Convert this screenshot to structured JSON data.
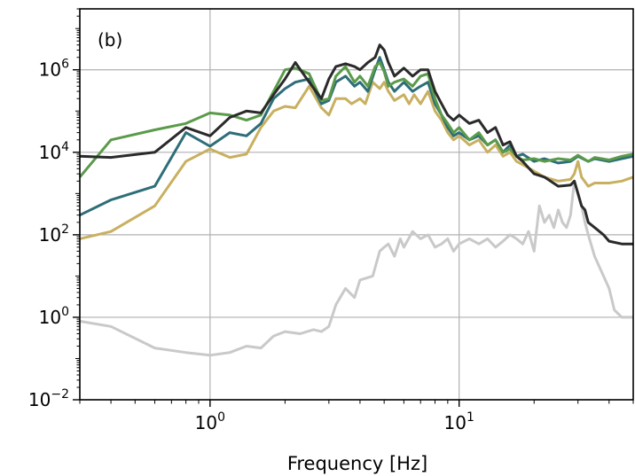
{
  "chart_data": {
    "type": "line",
    "panel_label": "(b)",
    "xlabel": "Frequency [Hz]",
    "xscale": "log",
    "yscale": "log",
    "xlim": [
      0.3,
      50
    ],
    "ylim": [
      0.01,
      30000000
    ],
    "grid": true,
    "x_ticks": [
      {
        "value": 1,
        "base": "10",
        "exp": "0"
      },
      {
        "value": 10,
        "base": "10",
        "exp": "1"
      }
    ],
    "y_ticks": [
      {
        "value": 0.01,
        "base": "10",
        "exp": "−2"
      },
      {
        "value": 1,
        "base": "10",
        "exp": "0"
      },
      {
        "value": 100,
        "base": "10",
        "exp": "2"
      },
      {
        "value": 10000,
        "base": "10",
        "exp": "4"
      },
      {
        "value": 1000000,
        "base": "10",
        "exp": "6"
      }
    ],
    "series": [
      {
        "color": "#c9c9c9",
        "points": [
          [
            0.3,
            0.8
          ],
          [
            0.4,
            0.6
          ],
          [
            0.6,
            0.18
          ],
          [
            0.8,
            0.14
          ],
          [
            1.0,
            0.12
          ],
          [
            1.2,
            0.14
          ],
          [
            1.4,
            0.2
          ],
          [
            1.6,
            0.18
          ],
          [
            1.8,
            0.35
          ],
          [
            2.0,
            0.45
          ],
          [
            2.3,
            0.4
          ],
          [
            2.6,
            0.5
          ],
          [
            2.8,
            0.45
          ],
          [
            3.0,
            0.6
          ],
          [
            3.2,
            2
          ],
          [
            3.5,
            5
          ],
          [
            3.8,
            3
          ],
          [
            4.0,
            8
          ],
          [
            4.5,
            10
          ],
          [
            4.8,
            40
          ],
          [
            5.0,
            50
          ],
          [
            5.2,
            60
          ],
          [
            5.5,
            30
          ],
          [
            5.8,
            80
          ],
          [
            6.0,
            50
          ],
          [
            6.5,
            120
          ],
          [
            7.0,
            80
          ],
          [
            7.5,
            100
          ],
          [
            8.0,
            50
          ],
          [
            8.5,
            60
          ],
          [
            9.0,
            80
          ],
          [
            9.5,
            40
          ],
          [
            10.0,
            60
          ],
          [
            11,
            80
          ],
          [
            12,
            60
          ],
          [
            13,
            80
          ],
          [
            14,
            50
          ],
          [
            15,
            70
          ],
          [
            16,
            100
          ],
          [
            17,
            80
          ],
          [
            18,
            60
          ],
          [
            19,
            120
          ],
          [
            20,
            40
          ],
          [
            21,
            500
          ],
          [
            22,
            200
          ],
          [
            23,
            300
          ],
          [
            24,
            150
          ],
          [
            25,
            400
          ],
          [
            26,
            200
          ],
          [
            27,
            150
          ],
          [
            28,
            300
          ],
          [
            29,
            2000
          ],
          [
            30,
            1000
          ],
          [
            31,
            500
          ],
          [
            32,
            200
          ],
          [
            33,
            100
          ],
          [
            35,
            30
          ],
          [
            38,
            10
          ],
          [
            40,
            5
          ],
          [
            42,
            1.5
          ],
          [
            45,
            1
          ],
          [
            50,
            1
          ]
        ]
      },
      {
        "color": "#c8b060",
        "points": [
          [
            0.3,
            80
          ],
          [
            0.4,
            120
          ],
          [
            0.6,
            500
          ],
          [
            0.8,
            6000
          ],
          [
            1.0,
            12000
          ],
          [
            1.2,
            7500
          ],
          [
            1.4,
            9000
          ],
          [
            1.6,
            40000
          ],
          [
            1.8,
            100000
          ],
          [
            2.0,
            130000
          ],
          [
            2.2,
            120000
          ],
          [
            2.5,
            400000
          ],
          [
            2.8,
            120000
          ],
          [
            3.0,
            80000
          ],
          [
            3.2,
            200000
          ],
          [
            3.5,
            200000
          ],
          [
            3.7,
            150000
          ],
          [
            4.0,
            200000
          ],
          [
            4.2,
            150000
          ],
          [
            4.5,
            500000
          ],
          [
            4.8,
            350000
          ],
          [
            5.0,
            500000
          ],
          [
            5.2,
            300000
          ],
          [
            5.5,
            180000
          ],
          [
            6.0,
            250000
          ],
          [
            6.3,
            150000
          ],
          [
            6.6,
            250000
          ],
          [
            7.0,
            150000
          ],
          [
            7.5,
            300000
          ],
          [
            8.0,
            100000
          ],
          [
            8.5,
            60000
          ],
          [
            9.0,
            30000
          ],
          [
            9.5,
            20000
          ],
          [
            10,
            25000
          ],
          [
            11,
            15000
          ],
          [
            12,
            20000
          ],
          [
            13,
            10000
          ],
          [
            14,
            15000
          ],
          [
            15,
            8000
          ],
          [
            16,
            10000
          ],
          [
            17,
            6000
          ],
          [
            18,
            5000
          ],
          [
            20,
            3500
          ],
          [
            22,
            2500
          ],
          [
            25,
            2000
          ],
          [
            28,
            2200
          ],
          [
            29,
            3000
          ],
          [
            30,
            6000
          ],
          [
            31,
            2500
          ],
          [
            33,
            1500
          ],
          [
            35,
            1800
          ],
          [
            40,
            1800
          ],
          [
            45,
            2000
          ],
          [
            50,
            2500
          ]
        ]
      },
      {
        "color": "#2e6e78",
        "points": [
          [
            0.3,
            300
          ],
          [
            0.4,
            700
          ],
          [
            0.6,
            1500
          ],
          [
            0.8,
            30000
          ],
          [
            1.0,
            14000
          ],
          [
            1.2,
            30000
          ],
          [
            1.4,
            25000
          ],
          [
            1.6,
            50000
          ],
          [
            1.8,
            200000
          ],
          [
            2.0,
            350000
          ],
          [
            2.2,
            500000
          ],
          [
            2.5,
            600000
          ],
          [
            2.8,
            150000
          ],
          [
            3.0,
            180000
          ],
          [
            3.2,
            500000
          ],
          [
            3.5,
            700000
          ],
          [
            3.8,
            400000
          ],
          [
            4.0,
            500000
          ],
          [
            4.3,
            300000
          ],
          [
            4.6,
            1000000
          ],
          [
            4.8,
            2000000
          ],
          [
            5.0,
            1000000
          ],
          [
            5.2,
            500000
          ],
          [
            5.5,
            300000
          ],
          [
            6.0,
            500000
          ],
          [
            6.5,
            300000
          ],
          [
            7.0,
            400000
          ],
          [
            7.5,
            500000
          ],
          [
            8.0,
            150000
          ],
          [
            8.5,
            80000
          ],
          [
            9.0,
            40000
          ],
          [
            9.5,
            25000
          ],
          [
            10,
            30000
          ],
          [
            11,
            20000
          ],
          [
            12,
            25000
          ],
          [
            13,
            15000
          ],
          [
            14,
            20000
          ],
          [
            15,
            10000
          ],
          [
            16,
            15000
          ],
          [
            17,
            8000
          ],
          [
            18,
            9000
          ],
          [
            20,
            6000
          ],
          [
            22,
            7000
          ],
          [
            25,
            5500
          ],
          [
            28,
            6000
          ],
          [
            30,
            8000
          ],
          [
            33,
            6000
          ],
          [
            35,
            7000
          ],
          [
            40,
            6000
          ],
          [
            45,
            7000
          ],
          [
            50,
            8000
          ]
        ]
      },
      {
        "color": "#5a9a4a",
        "points": [
          [
            0.3,
            2500
          ],
          [
            0.4,
            20000
          ],
          [
            0.6,
            35000
          ],
          [
            0.8,
            50000
          ],
          [
            1.0,
            90000
          ],
          [
            1.2,
            80000
          ],
          [
            1.4,
            60000
          ],
          [
            1.6,
            80000
          ],
          [
            1.8,
            300000
          ],
          [
            2.0,
            1000000
          ],
          [
            2.2,
            1100000
          ],
          [
            2.5,
            800000
          ],
          [
            2.8,
            180000
          ],
          [
            3.0,
            200000
          ],
          [
            3.2,
            700000
          ],
          [
            3.5,
            1200000
          ],
          [
            3.8,
            500000
          ],
          [
            4.0,
            700000
          ],
          [
            4.3,
            400000
          ],
          [
            4.6,
            1200000
          ],
          [
            4.8,
            1500000
          ],
          [
            5.0,
            900000
          ],
          [
            5.2,
            400000
          ],
          [
            5.5,
            500000
          ],
          [
            6.0,
            600000
          ],
          [
            6.5,
            400000
          ],
          [
            7.0,
            700000
          ],
          [
            7.5,
            800000
          ],
          [
            8.0,
            200000
          ],
          [
            8.5,
            80000
          ],
          [
            9.0,
            50000
          ],
          [
            9.5,
            30000
          ],
          [
            10,
            40000
          ],
          [
            11,
            20000
          ],
          [
            12,
            30000
          ],
          [
            13,
            15000
          ],
          [
            14,
            20000
          ],
          [
            15,
            10000
          ],
          [
            16,
            12000
          ],
          [
            17,
            8000
          ],
          [
            18,
            6500
          ],
          [
            20,
            7000
          ],
          [
            22,
            6000
          ],
          [
            25,
            7000
          ],
          [
            28,
            6500
          ],
          [
            30,
            8500
          ],
          [
            33,
            6000
          ],
          [
            35,
            7500
          ],
          [
            40,
            6500
          ],
          [
            45,
            8000
          ],
          [
            50,
            9000
          ]
        ]
      },
      {
        "color": "#2a2a2a",
        "points": [
          [
            0.3,
            8000
          ],
          [
            0.4,
            7500
          ],
          [
            0.6,
            10000
          ],
          [
            0.8,
            40000
          ],
          [
            1.0,
            25000
          ],
          [
            1.2,
            70000
          ],
          [
            1.4,
            100000
          ],
          [
            1.6,
            90000
          ],
          [
            1.8,
            250000
          ],
          [
            2.0,
            600000
          ],
          [
            2.2,
            1500000
          ],
          [
            2.5,
            500000
          ],
          [
            2.8,
            200000
          ],
          [
            3.0,
            600000
          ],
          [
            3.2,
            1200000
          ],
          [
            3.5,
            1400000
          ],
          [
            3.8,
            1200000
          ],
          [
            4.0,
            1000000
          ],
          [
            4.3,
            1500000
          ],
          [
            4.6,
            2000000
          ],
          [
            4.8,
            4000000
          ],
          [
            5.0,
            3000000
          ],
          [
            5.2,
            1500000
          ],
          [
            5.5,
            700000
          ],
          [
            6.0,
            1100000
          ],
          [
            6.5,
            700000
          ],
          [
            7.0,
            1000000
          ],
          [
            7.5,
            1000000
          ],
          [
            8.0,
            300000
          ],
          [
            8.5,
            150000
          ],
          [
            9.0,
            80000
          ],
          [
            9.5,
            60000
          ],
          [
            10,
            80000
          ],
          [
            11,
            50000
          ],
          [
            12,
            60000
          ],
          [
            13,
            30000
          ],
          [
            14,
            40000
          ],
          [
            15,
            15000
          ],
          [
            16,
            18000
          ],
          [
            17,
            8000
          ],
          [
            18,
            6000
          ],
          [
            20,
            3000
          ],
          [
            22,
            2500
          ],
          [
            25,
            1500
          ],
          [
            28,
            1600
          ],
          [
            29,
            2000
          ],
          [
            30,
            1000
          ],
          [
            31,
            500
          ],
          [
            32,
            400
          ],
          [
            33,
            200
          ],
          [
            35,
            150
          ],
          [
            38,
            100
          ],
          [
            40,
            70
          ],
          [
            45,
            60
          ],
          [
            50,
            60
          ]
        ]
      }
    ]
  }
}
